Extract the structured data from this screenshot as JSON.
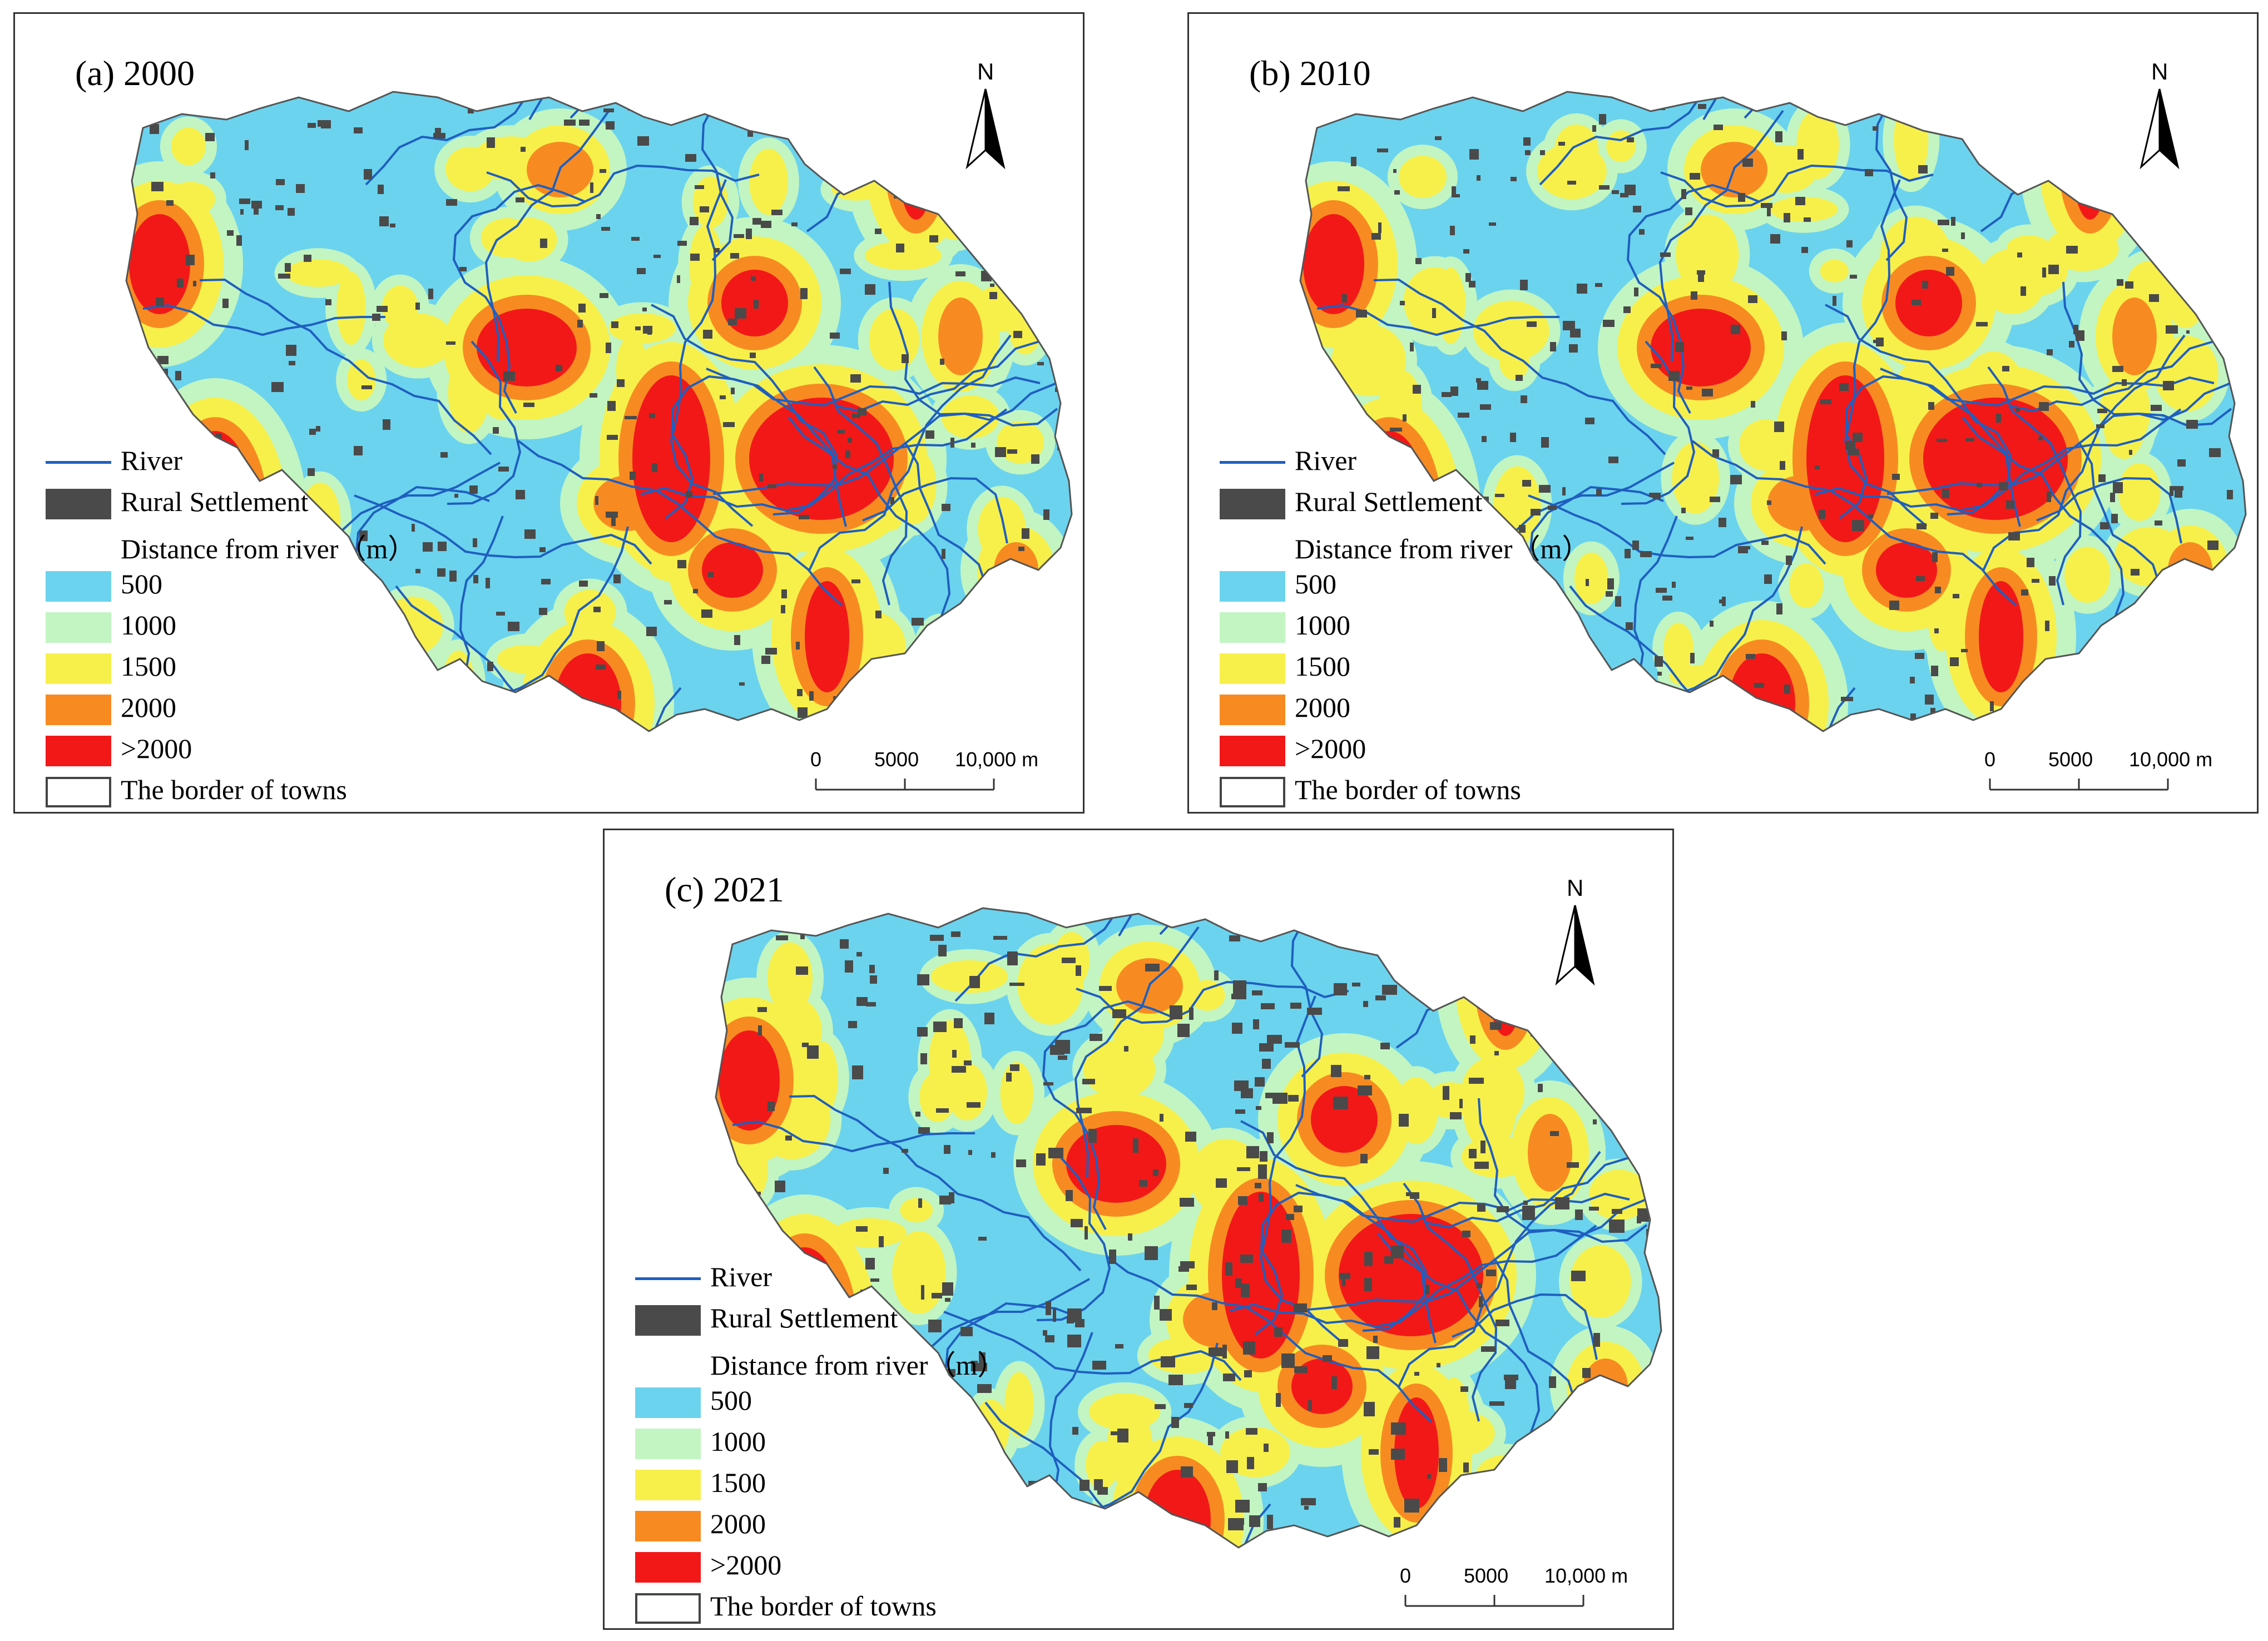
{
  "panels": [
    {
      "id": "a",
      "title": "(a) 2000"
    },
    {
      "id": "b",
      "title": "(b) 2010"
    },
    {
      "id": "c",
      "title": "(c) 2021"
    }
  ],
  "north_label": "N",
  "scalebar": {
    "labels": [
      "0",
      "5000",
      "10,000 m"
    ]
  },
  "legend": {
    "river": {
      "label": "River",
      "color": "#1f5fbf"
    },
    "settlement": {
      "label": "Rural Settlement",
      "color": "#4a4a4a"
    },
    "distance_title": "Distance from river（m）",
    "classes": [
      {
        "label": "500",
        "color": "#6bd3ee"
      },
      {
        "label": "1000",
        "color": "#c2f5c2"
      },
      {
        "label": "1500",
        "color": "#f7f04a"
      },
      {
        "label": "2000",
        "color": "#f78b22"
      },
      {
        "label": ">2000",
        "color": "#f21818"
      }
    ],
    "border": {
      "label": "The border of towns"
    }
  }
}
